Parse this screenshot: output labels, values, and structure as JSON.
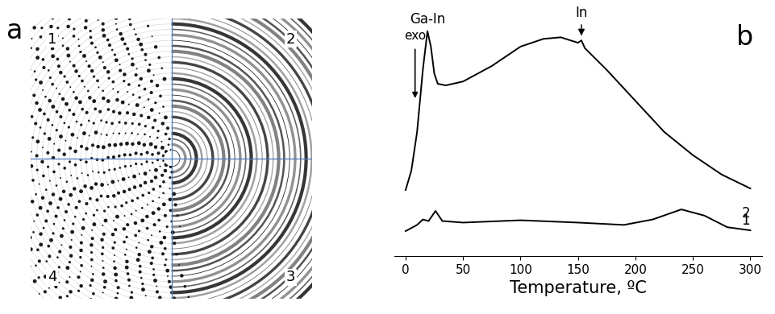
{
  "image": {
    "label": "a",
    "quadrant_labels": [
      "1",
      "2",
      "3",
      "4"
    ]
  },
  "chart_data": {
    "type": "line",
    "x_label": "Temperature, ºC",
    "xlim": [
      -10,
      310
    ],
    "xticks": [
      0,
      50,
      100,
      150,
      200,
      250,
      300
    ],
    "ylim": [
      0,
      32
    ],
    "tick_labels": "x",
    "color": "#000000",
    "annotations": [
      {
        "text": "exo"
      },
      {
        "text": "Ga-In",
        "x": 19
      },
      {
        "text": "In",
        "x": 153
      },
      {
        "text": "b"
      }
    ],
    "series": [
      {
        "name": "2",
        "x": [
          0,
          5,
          10,
          15,
          19,
          22,
          25,
          28,
          35,
          50,
          75,
          100,
          120,
          135,
          150,
          153,
          156,
          175,
          200,
          225,
          250,
          275,
          300
        ],
        "values": [
          8.5,
          11,
          16,
          24,
          29,
          27,
          23.5,
          22.2,
          22,
          22.5,
          24.5,
          27,
          28,
          28.2,
          27.5,
          27.8,
          26.8,
          24,
          20,
          16,
          13,
          10.5,
          8.7
        ]
      },
      {
        "name": "1",
        "x": [
          0,
          10,
          15,
          20,
          26,
          32,
          50,
          100,
          150,
          190,
          215,
          240,
          260,
          280,
          300
        ],
        "values": [
          3.2,
          4,
          4.7,
          4.5,
          5.8,
          4.5,
          4.3,
          4.6,
          4.3,
          4,
          4.7,
          6,
          5.2,
          3.7,
          3.3
        ]
      }
    ]
  }
}
